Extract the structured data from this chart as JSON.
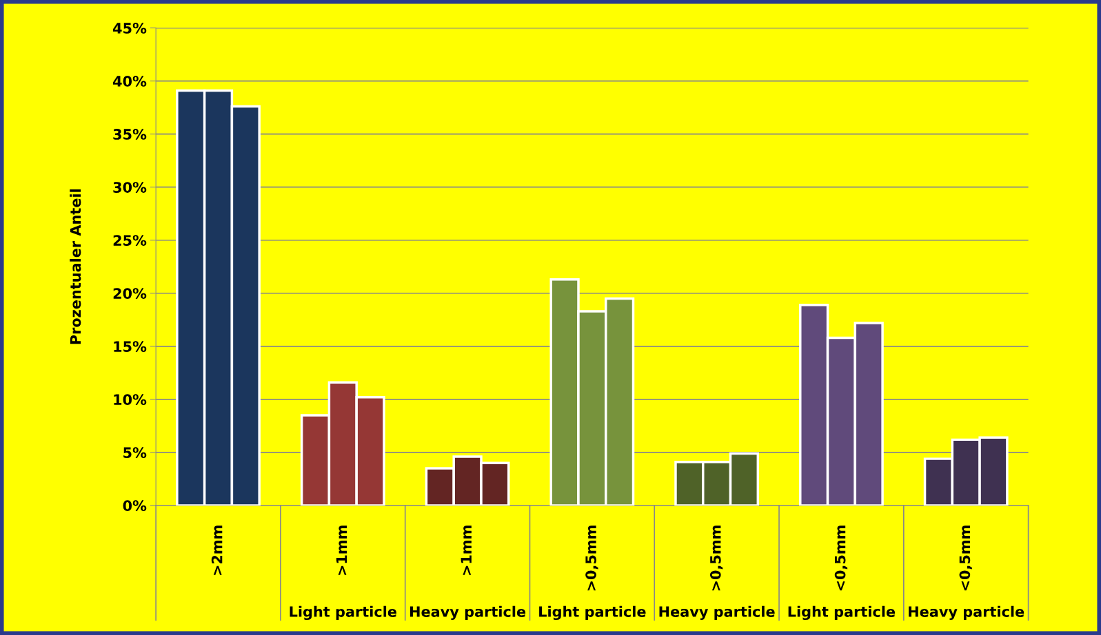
{
  "chart_data": {
    "type": "bar",
    "ylabel": "Prozentualer Anteil",
    "categories": [
      ">2mm",
      ">1mm",
      ">1mm",
      ">0,5mm",
      ">0,5mm",
      "<0,5mm",
      "<0,5mm"
    ],
    "series": [
      {
        "colors": [
          "#1b365d",
          "#953735",
          "#632523",
          "#77933c",
          "#4f6228",
          "#604a7b",
          "#3f3151"
        ],
        "values": [
          39.1,
          8.5,
          3.5,
          21.3,
          4.1,
          18.9,
          4.4
        ]
      },
      {
        "colors": [
          "#1b365d",
          "#953735",
          "#632523",
          "#77933c",
          "#4f6228",
          "#604a7b",
          "#3f3151"
        ],
        "values": [
          39.1,
          11.6,
          4.6,
          18.3,
          4.1,
          15.8,
          6.2
        ]
      },
      {
        "colors": [
          "#1b365d",
          "#953735",
          "#632523",
          "#77933c",
          "#4f6228",
          "#604a7b",
          "#3f3151"
        ],
        "values": [
          37.6,
          10.2,
          4.0,
          19.5,
          4.9,
          17.2,
          6.4
        ]
      }
    ],
    "annotations": [
      "Light particle",
      "Heavy particle",
      "Light particle",
      "Heavy particle",
      "Light particle",
      "Heavy particle"
    ],
    "ylim": [
      0,
      45
    ],
    "yticks": [
      {
        "value": 0,
        "label": "0%"
      },
      {
        "value": 5,
        "label": "5%"
      },
      {
        "value": 10,
        "label": "10%"
      },
      {
        "value": 15,
        "label": "15%"
      },
      {
        "value": 20,
        "label": "20%"
      },
      {
        "value": 25,
        "label": "25%"
      },
      {
        "value": 30,
        "label": "30%"
      },
      {
        "value": 35,
        "label": "35%"
      },
      {
        "value": 40,
        "label": "40%"
      },
      {
        "value": 45,
        "label": "45%"
      }
    ],
    "grid": "y"
  }
}
